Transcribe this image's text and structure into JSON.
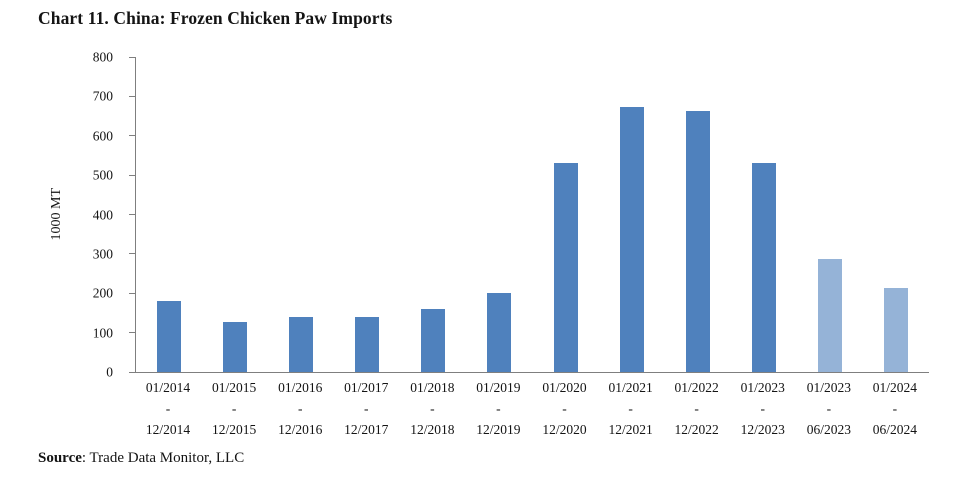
{
  "title": "Chart 11. China: Frozen Chicken Paw Imports",
  "source": {
    "label": "Source",
    "rest": ": Trade Data Monitor, LLC"
  },
  "chart_data": {
    "type": "bar",
    "title": "Chart 11. China: Frozen Chicken Paw Imports",
    "ylabel": "1000 MT",
    "ylim": [
      0,
      800
    ],
    "yticks": [
      0,
      100,
      200,
      300,
      400,
      500,
      600,
      700,
      800
    ],
    "grid": false,
    "legend_position": "none",
    "category_separator": "-",
    "categories": [
      {
        "start": "01/2014",
        "end": "12/2014"
      },
      {
        "start": "01/2015",
        "end": "12/2015"
      },
      {
        "start": "01/2016",
        "end": "12/2016"
      },
      {
        "start": "01/2017",
        "end": "12/2017"
      },
      {
        "start": "01/2018",
        "end": "12/2018"
      },
      {
        "start": "01/2019",
        "end": "12/2019"
      },
      {
        "start": "01/2020",
        "end": "12/2020"
      },
      {
        "start": "01/2021",
        "end": "12/2021"
      },
      {
        "start": "01/2022",
        "end": "12/2022"
      },
      {
        "start": "01/2023",
        "end": "12/2023"
      },
      {
        "start": "01/2023",
        "end": "06/2023"
      },
      {
        "start": "01/2024",
        "end": "06/2024"
      }
    ],
    "values": [
      180,
      127,
      140,
      140,
      161,
      201,
      530,
      673,
      664,
      530,
      286,
      213
    ],
    "bar_colors": [
      "#4f81bd",
      "#4f81bd",
      "#4f81bd",
      "#4f81bd",
      "#4f81bd",
      "#4f81bd",
      "#4f81bd",
      "#4f81bd",
      "#4f81bd",
      "#4f81bd",
      "#95b3d7",
      "#95b3d7"
    ],
    "colors": {
      "full_year_bar": "#4f81bd",
      "partial_year_bar": "#95b3d7",
      "axis": "#7f7f7f",
      "text": "#141414"
    }
  }
}
